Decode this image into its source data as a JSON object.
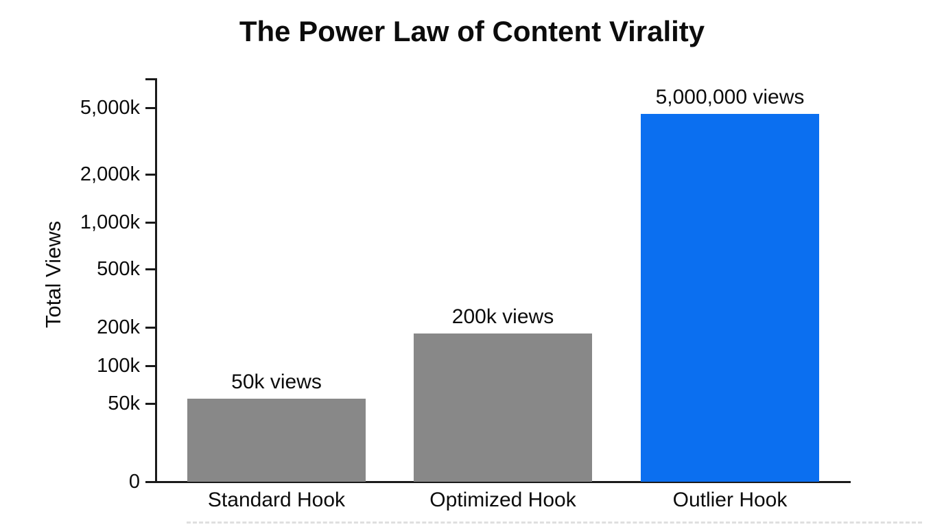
{
  "chart_data": {
    "type": "bar",
    "title": "The Power Law of Content Virality",
    "ylabel": "Total Views",
    "xlabel": "",
    "y_scale": "log",
    "grid": false,
    "legend": false,
    "categories": [
      "Standard Hook",
      "Optimized Hook",
      "Outlier Hook"
    ],
    "values": [
      50000,
      200000,
      5000000
    ],
    "value_labels": [
      "50k views",
      "200k views",
      "5,000,000 views"
    ],
    "bar_colors": [
      "#888888",
      "#888888",
      "#0b6ff0"
    ],
    "y_ticks": [
      "5,000k",
      "2,000k",
      "1,000k",
      "500k",
      "200k",
      "100k",
      "50k",
      "0"
    ]
  },
  "colors": {
    "background": "#ffffff",
    "axis": "#1a1a1a",
    "text": "#0c0c0c",
    "bar_gray": "#888888",
    "bar_blue": "#0b6ff0",
    "bottom_dash_line": "#cbcbcb"
  }
}
